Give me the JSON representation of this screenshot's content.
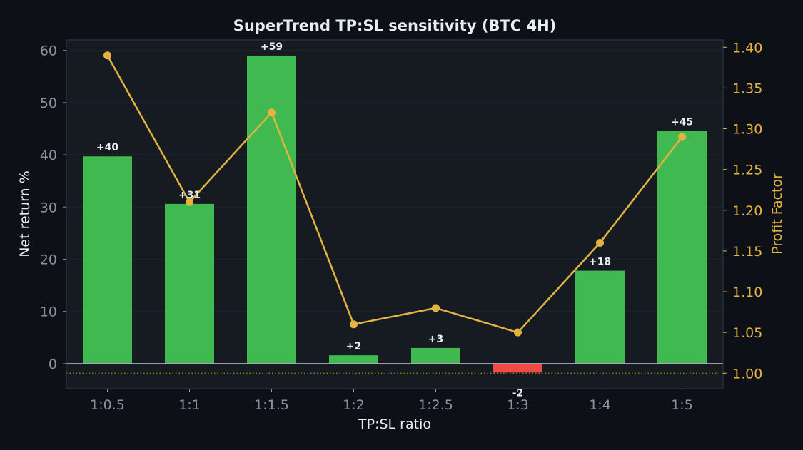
{
  "chart_data": {
    "type": "bar",
    "title": "SuperTrend TP:SL sensitivity (BTC 4H)",
    "xlabel": "TP:SL ratio",
    "ylabel": "Net return %",
    "y2label": "Profit Factor",
    "categories": [
      "1:0.5",
      "1:1",
      "1:1.5",
      "1:2",
      "1:2.5",
      "1:3",
      "1:4",
      "1:5"
    ],
    "series": [
      {
        "axis": "left",
        "type": "bar",
        "values": [
          39.7,
          30.6,
          59.0,
          1.6,
          3.0,
          -1.7,
          17.8,
          44.6
        ],
        "labels": [
          "+40",
          "+31",
          "+59",
          "+2",
          "+3",
          "-2",
          "+18",
          "+45"
        ],
        "positive_color": "#3fb950",
        "negative_color": "#f04a48"
      },
      {
        "axis": "right",
        "type": "line",
        "values": [
          1.39,
          1.21,
          1.32,
          1.06,
          1.08,
          1.05,
          1.16,
          1.29
        ],
        "color": "#e3b341"
      }
    ],
    "ylim": [
      -4.8,
      62
    ],
    "yticks": [
      0,
      10,
      20,
      30,
      40,
      50,
      60
    ],
    "y2lim": [
      0.981,
      1.409
    ],
    "y2ticks": [
      "1.00",
      "1.05",
      "1.10",
      "1.15",
      "1.20",
      "1.25",
      "1.30",
      "1.35",
      "1.40"
    ],
    "reference_line": {
      "axis": "right",
      "value": 1.0,
      "style": "dotted"
    },
    "zero_line": true,
    "grid": "y",
    "legend": "none",
    "colors": {
      "background": "#0d1117",
      "plot_background": "#161b22",
      "frame": "#30363d",
      "grid": "#1f242c",
      "text": "#e6edf3",
      "tick": "#8b949e",
      "accent": "#e3b341"
    }
  }
}
